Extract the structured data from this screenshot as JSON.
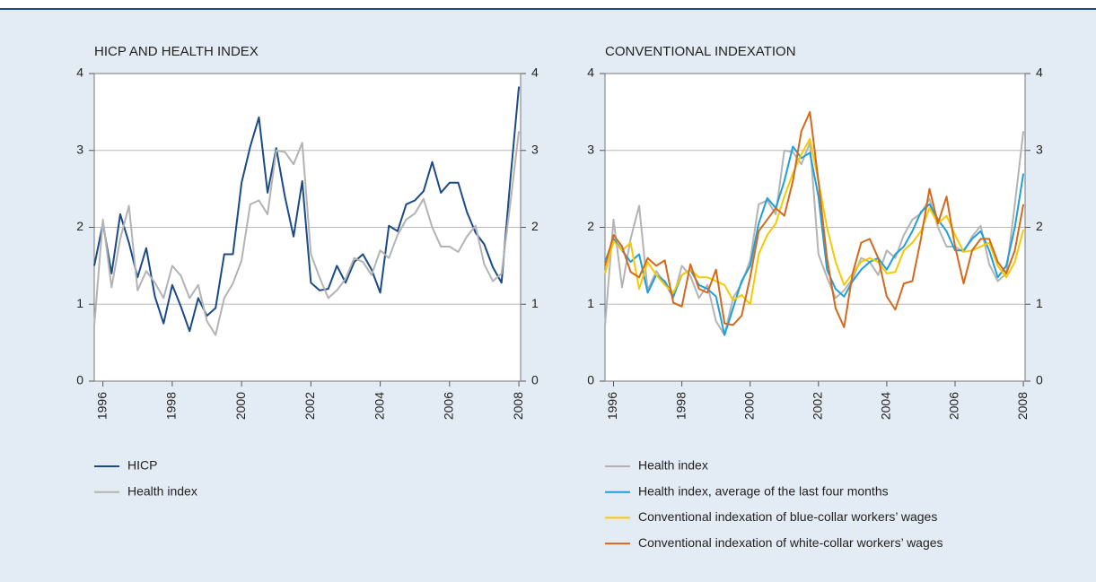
{
  "chart_data": [
    {
      "type": "line",
      "title": "HICP AND HEALTH INDEX",
      "x": [
        1995.75,
        1996,
        1996.25,
        1996.5,
        1996.75,
        1997,
        1997.25,
        1997.5,
        1997.75,
        1998,
        1998.25,
        1998.5,
        1998.75,
        1999,
        1999.25,
        1999.5,
        1999.75,
        2000,
        2000.25,
        2000.5,
        2000.75,
        2001,
        2001.25,
        2001.5,
        2001.75,
        2002,
        2002.25,
        2002.5,
        2002.75,
        2003,
        2003.25,
        2003.5,
        2003.75,
        2004,
        2004.25,
        2004.5,
        2004.75,
        2005,
        2005.25,
        2005.5,
        2005.75,
        2006,
        2006.25,
        2006.5,
        2006.75,
        2007,
        2007.25,
        2007.5,
        2007.75,
        2008
      ],
      "series": [
        {
          "name": "HICP",
          "color": "#1b4a85",
          "values": [
            1.5,
            2.05,
            1.4,
            2.17,
            1.8,
            1.35,
            1.73,
            1.1,
            0.75,
            1.25,
            0.97,
            0.65,
            1.08,
            0.85,
            0.95,
            1.65,
            1.65,
            2.58,
            3.05,
            3.43,
            2.45,
            3.03,
            2.4,
            1.88,
            2.6,
            1.28,
            1.18,
            1.2,
            1.5,
            1.28,
            1.55,
            1.65,
            1.45,
            1.15,
            2.02,
            1.95,
            2.3,
            2.35,
            2.47,
            2.85,
            2.45,
            2.58,
            2.58,
            2.2,
            1.93,
            1.78,
            1.48,
            1.28,
            2.6,
            3.83
          ]
        },
        {
          "name": "Health index",
          "color": "#b3b3b3",
          "values": [
            0.72,
            2.1,
            1.22,
            1.85,
            2.28,
            1.18,
            1.43,
            1.28,
            1.08,
            1.5,
            1.37,
            1.08,
            1.25,
            0.78,
            0.6,
            1.08,
            1.27,
            1.57,
            2.3,
            2.35,
            2.17,
            3.0,
            2.98,
            2.82,
            3.1,
            1.65,
            1.35,
            1.08,
            1.18,
            1.33,
            1.6,
            1.55,
            1.38,
            1.7,
            1.6,
            1.9,
            2.1,
            2.18,
            2.37,
            2.0,
            1.75,
            1.75,
            1.68,
            1.88,
            2.02,
            1.52,
            1.3,
            1.4,
            2.3,
            3.25
          ]
        }
      ],
      "xlim": [
        1995.75,
        2008.05
      ],
      "xticks": [
        1996,
        1998,
        2000,
        2002,
        2004,
        2006,
        2008
      ],
      "ylim": [
        0,
        4
      ],
      "yticks": [
        0,
        1,
        2,
        3,
        4
      ],
      "grid": true
    },
    {
      "type": "line",
      "title": "CONVENTIONAL INDEXATION",
      "x": [
        1995.75,
        1996,
        1996.25,
        1996.5,
        1996.75,
        1997,
        1997.25,
        1997.5,
        1997.75,
        1998,
        1998.25,
        1998.5,
        1998.75,
        1999,
        1999.25,
        1999.5,
        1999.75,
        2000,
        2000.25,
        2000.5,
        2000.75,
        2001,
        2001.25,
        2001.5,
        2001.75,
        2002,
        2002.25,
        2002.5,
        2002.75,
        2003,
        2003.25,
        2003.5,
        2003.75,
        2004,
        2004.25,
        2004.5,
        2004.75,
        2005,
        2005.25,
        2005.5,
        2005.75,
        2006,
        2006.25,
        2006.5,
        2006.75,
        2007,
        2007.25,
        2007.5,
        2007.75,
        2008
      ],
      "series": [
        {
          "name": "Health index",
          "color": "#b3b3b3",
          "values": [
            0.72,
            2.1,
            1.22,
            1.85,
            2.28,
            1.18,
            1.43,
            1.28,
            1.08,
            1.5,
            1.37,
            1.08,
            1.25,
            0.78,
            0.6,
            1.08,
            1.27,
            1.57,
            2.3,
            2.35,
            2.17,
            3.0,
            2.98,
            2.82,
            3.1,
            1.65,
            1.35,
            1.08,
            1.18,
            1.33,
            1.6,
            1.55,
            1.38,
            1.7,
            1.6,
            1.9,
            2.1,
            2.18,
            2.37,
            2.0,
            1.75,
            1.75,
            1.68,
            1.88,
            2.02,
            1.52,
            1.3,
            1.4,
            2.3,
            3.25
          ]
        },
        {
          "name": "Health index, average of the last four months",
          "color": "#1e9fd9",
          "values": [
            1.55,
            1.85,
            1.7,
            1.55,
            1.65,
            1.15,
            1.38,
            1.3,
            1.1,
            1.38,
            1.45,
            1.25,
            1.2,
            1.1,
            0.6,
            0.95,
            1.3,
            1.5,
            2.05,
            2.38,
            2.25,
            2.6,
            3.05,
            2.9,
            2.97,
            2.4,
            1.45,
            1.2,
            1.1,
            1.3,
            1.45,
            1.55,
            1.6,
            1.45,
            1.65,
            1.75,
            1.95,
            2.2,
            2.3,
            2.1,
            1.95,
            1.7,
            1.7,
            1.85,
            1.95,
            1.7,
            1.35,
            1.5,
            2.0,
            2.7
          ]
        },
        {
          "name": "Conventional indexation of blue-collar workers’ wages",
          "color": "#f6c900",
          "values": [
            1.4,
            1.82,
            1.7,
            1.8,
            1.2,
            1.55,
            1.38,
            1.25,
            1.15,
            1.38,
            1.45,
            1.35,
            1.35,
            1.3,
            1.25,
            1.05,
            1.12,
            1.0,
            1.65,
            1.9,
            2.05,
            2.4,
            2.7,
            2.95,
            3.15,
            2.6,
            2.0,
            1.55,
            1.25,
            1.4,
            1.55,
            1.6,
            1.55,
            1.4,
            1.42,
            1.7,
            1.8,
            1.95,
            2.25,
            2.05,
            2.15,
            1.9,
            1.68,
            1.7,
            1.75,
            1.8,
            1.5,
            1.35,
            1.55,
            1.97
          ]
        },
        {
          "name": "Conventional indexation of white-collar workers’ wages",
          "color": "#d2691c",
          "values": [
            1.5,
            1.9,
            1.75,
            1.42,
            1.35,
            1.6,
            1.5,
            1.57,
            1.02,
            0.97,
            1.52,
            1.2,
            1.15,
            1.45,
            0.75,
            0.73,
            0.85,
            1.35,
            1.95,
            2.1,
            2.25,
            2.15,
            2.6,
            3.25,
            3.5,
            2.6,
            1.6,
            0.95,
            0.7,
            1.4,
            1.8,
            1.85,
            1.6,
            1.1,
            0.93,
            1.27,
            1.3,
            1.85,
            2.5,
            2.05,
            2.4,
            1.75,
            1.27,
            1.7,
            1.85,
            1.85,
            1.55,
            1.4,
            1.7,
            2.3
          ]
        }
      ],
      "xlim": [
        1995.75,
        2008.05
      ],
      "xticks": [
        1996,
        1998,
        2000,
        2002,
        2004,
        2006,
        2008
      ],
      "ylim": [
        0,
        4
      ],
      "yticks": [
        0,
        1,
        2,
        3,
        4
      ],
      "grid": true
    }
  ]
}
